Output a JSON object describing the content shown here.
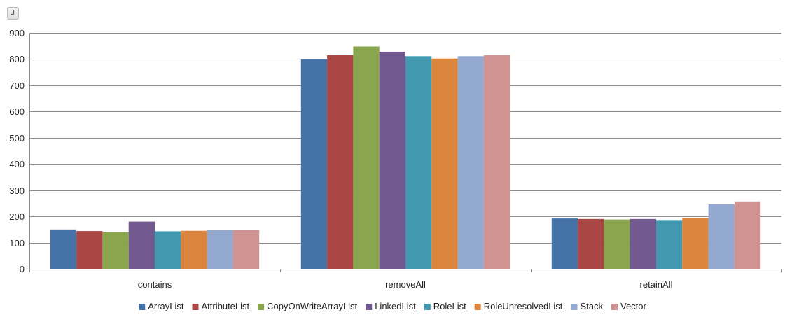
{
  "badge": "J",
  "chart_data": {
    "type": "bar",
    "categories": [
      "contains",
      "removeAll",
      "retainAll"
    ],
    "series": [
      {
        "name": "ArrayList",
        "color": "#4572A7",
        "values": [
          150,
          800,
          192
        ]
      },
      {
        "name": "AttributeList",
        "color": "#AA4643",
        "values": [
          144,
          815,
          190
        ]
      },
      {
        "name": "CopyOnWriteArrayList",
        "color": "#89A54E",
        "values": [
          140,
          848,
          188
        ]
      },
      {
        "name": "LinkedList",
        "color": "#71588F",
        "values": [
          180,
          828,
          190
        ]
      },
      {
        "name": "RoleList",
        "color": "#4198AF",
        "values": [
          143,
          811,
          186
        ]
      },
      {
        "name": "RoleUnresolvedList",
        "color": "#DB843D",
        "values": [
          145,
          802,
          193
        ]
      },
      {
        "name": "Stack",
        "color": "#93A9CF",
        "values": [
          148,
          811,
          246
        ]
      },
      {
        "name": "Vector",
        "color": "#D19392",
        "values": [
          148,
          815,
          257
        ]
      }
    ],
    "ylim": [
      0,
      900
    ],
    "yticks": [
      "0",
      "100",
      "200",
      "300",
      "400",
      "500",
      "600",
      "700",
      "800",
      "900"
    ],
    "grid": true,
    "legend": "bottom"
  }
}
